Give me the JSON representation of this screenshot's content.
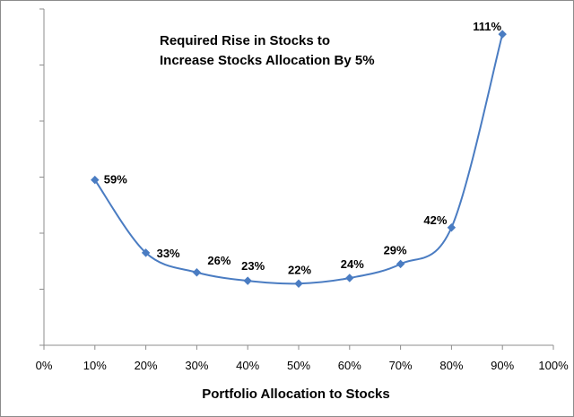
{
  "chart_data": {
    "type": "line",
    "title_lines": [
      "Required Rise in Stocks to",
      "Increase Stocks Allocation By 5%"
    ],
    "xlabel": "Portfolio Allocation to Stocks",
    "ylabel": "",
    "x_ticks": [
      "0%",
      "10%",
      "20%",
      "30%",
      "40%",
      "50%",
      "60%",
      "70%",
      "80%",
      "90%",
      "100%"
    ],
    "xlim": [
      0,
      100
    ],
    "ylim": [
      0,
      120
    ],
    "grid": false,
    "smooth": true,
    "color": "#4a7cc2",
    "series": [
      {
        "x": [
          10,
          20,
          30,
          40,
          50,
          60,
          70,
          80,
          90
        ],
        "values": [
          59,
          33,
          26,
          23,
          22,
          24,
          29,
          42,
          111
        ],
        "labels": [
          "59%",
          "33%",
          "26%",
          "23%",
          "22%",
          "24%",
          "29%",
          "42%",
          "111%"
        ]
      }
    ]
  }
}
